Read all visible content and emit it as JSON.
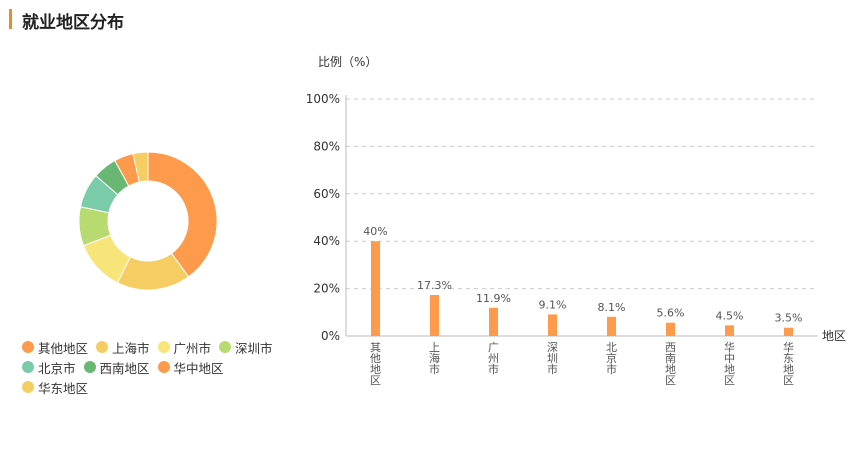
{
  "page": {
    "title": "就业地区分布"
  },
  "colors": [
    "#fe9a4b",
    "#f5cd63",
    "#f8e57a",
    "#b7db71",
    "#7acba9",
    "#68b873",
    "#fe9a4b",
    "#f5cd63"
  ],
  "bar_color": "#fe9a4b",
  "chart_data": [
    {
      "type": "pie",
      "variant": "donut",
      "categories": [
        "其他地区",
        "上海市",
        "广州市",
        "深圳市",
        "北京市",
        "西南地区",
        "华中地区",
        "华东地区"
      ],
      "values": [
        40,
        17.3,
        11.9,
        9.1,
        8.1,
        5.6,
        4.5,
        3.5
      ],
      "legend_position": "bottom"
    },
    {
      "type": "bar",
      "categories": [
        "其他地区",
        "上海市",
        "广州市",
        "深圳市",
        "北京市",
        "西南地区",
        "华中地区",
        "华东地区"
      ],
      "values": [
        40,
        17.3,
        11.9,
        9.1,
        8.1,
        5.6,
        4.5,
        3.5
      ],
      "data_labels": [
        "40%",
        "17.3%",
        "11.9%",
        "9.1%",
        "8.1%",
        "5.6%",
        "4.5%",
        "3.5%"
      ],
      "ylabel": "比例（%）",
      "xlabel": "地区",
      "ylim": [
        0,
        100
      ],
      "yticks": [
        "0%",
        "20%",
        "40%",
        "60%",
        "80%",
        "100%"
      ],
      "grid": true
    }
  ]
}
